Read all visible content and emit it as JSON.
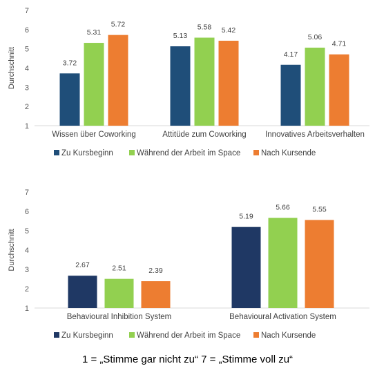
{
  "chart_data": [
    {
      "type": "bar",
      "ylabel": "Durchschnitt",
      "ylim": [
        1,
        7
      ],
      "yticks": [
        "1",
        "2",
        "3",
        "4",
        "5",
        "6",
        "7"
      ],
      "grid": false,
      "legend_position": "bottom",
      "categories": [
        "Wissen über Coworking",
        "Attitüde zum Coworking",
        "Innovatives Arbeitsverhalten"
      ],
      "series": [
        {
          "name": "Zu Kursbeginn",
          "color": "#1f4e79",
          "values": [
            3.72,
            5.13,
            4.17
          ],
          "labels": [
            "3.72",
            "5.13",
            "4.17"
          ]
        },
        {
          "name": "Während der Arbeit im Space",
          "color": "#92d050",
          "values": [
            5.31,
            5.58,
            5.06
          ],
          "labels": [
            "5.31",
            "5.58",
            "5.06"
          ]
        },
        {
          "name": "Nach Kursende",
          "color": "#ed7d31",
          "values": [
            5.72,
            5.42,
            4.71
          ],
          "labels": [
            "5.72",
            "5.42",
            "4.71"
          ]
        }
      ]
    },
    {
      "type": "bar",
      "ylabel": "Durchschnitt",
      "ylim": [
        1,
        7
      ],
      "yticks": [
        "1",
        "2",
        "3",
        "4",
        "5",
        "6",
        "7"
      ],
      "grid": false,
      "legend_position": "bottom",
      "categories": [
        "Behavioural Inhibition System",
        "Behavioural Activation System"
      ],
      "series": [
        {
          "name": "Zu Kursbeginn",
          "color": "#1f3864",
          "values": [
            2.67,
            5.19
          ],
          "labels": [
            "2.67",
            "5.19"
          ]
        },
        {
          "name": "Während der Arbeit im Space",
          "color": "#92d050",
          "values": [
            2.51,
            5.66
          ],
          "labels": [
            "2.51",
            "5.66"
          ]
        },
        {
          "name": "Nach Kursende",
          "color": "#ed7d31",
          "values": [
            2.39,
            5.55
          ],
          "labels": [
            "2.39",
            "5.55"
          ]
        }
      ]
    }
  ],
  "footnote": "1 = „Stimme gar nicht zu“ 7 = „Stimme voll zu“"
}
